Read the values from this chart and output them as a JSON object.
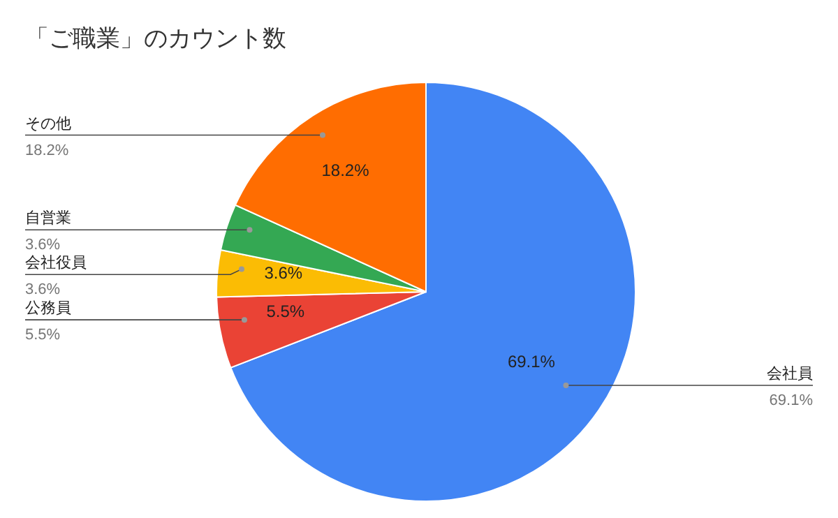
{
  "chart_data": {
    "type": "pie",
    "title": "「ご職業」のカウント数",
    "categories": [
      "会社員",
      "公務員",
      "会社役員",
      "自営業",
      "その他"
    ],
    "values": [
      69.1,
      5.5,
      3.6,
      3.6,
      18.2
    ],
    "colors": [
      "#4285f4",
      "#ea4335",
      "#fbbc04",
      "#34a853",
      "#ff6d01"
    ],
    "value_labels": [
      "69.1%",
      "5.5%",
      "3.6%",
      "3.6%",
      "18.2%"
    ],
    "annotations": [
      {
        "text": "69.1%",
        "x": "会社員"
      },
      {
        "text": "5.5%",
        "x": "公務員"
      },
      {
        "text": "3.6%",
        "x": "会社役員"
      },
      {
        "text": "18.2%",
        "x": "その他"
      }
    ]
  }
}
